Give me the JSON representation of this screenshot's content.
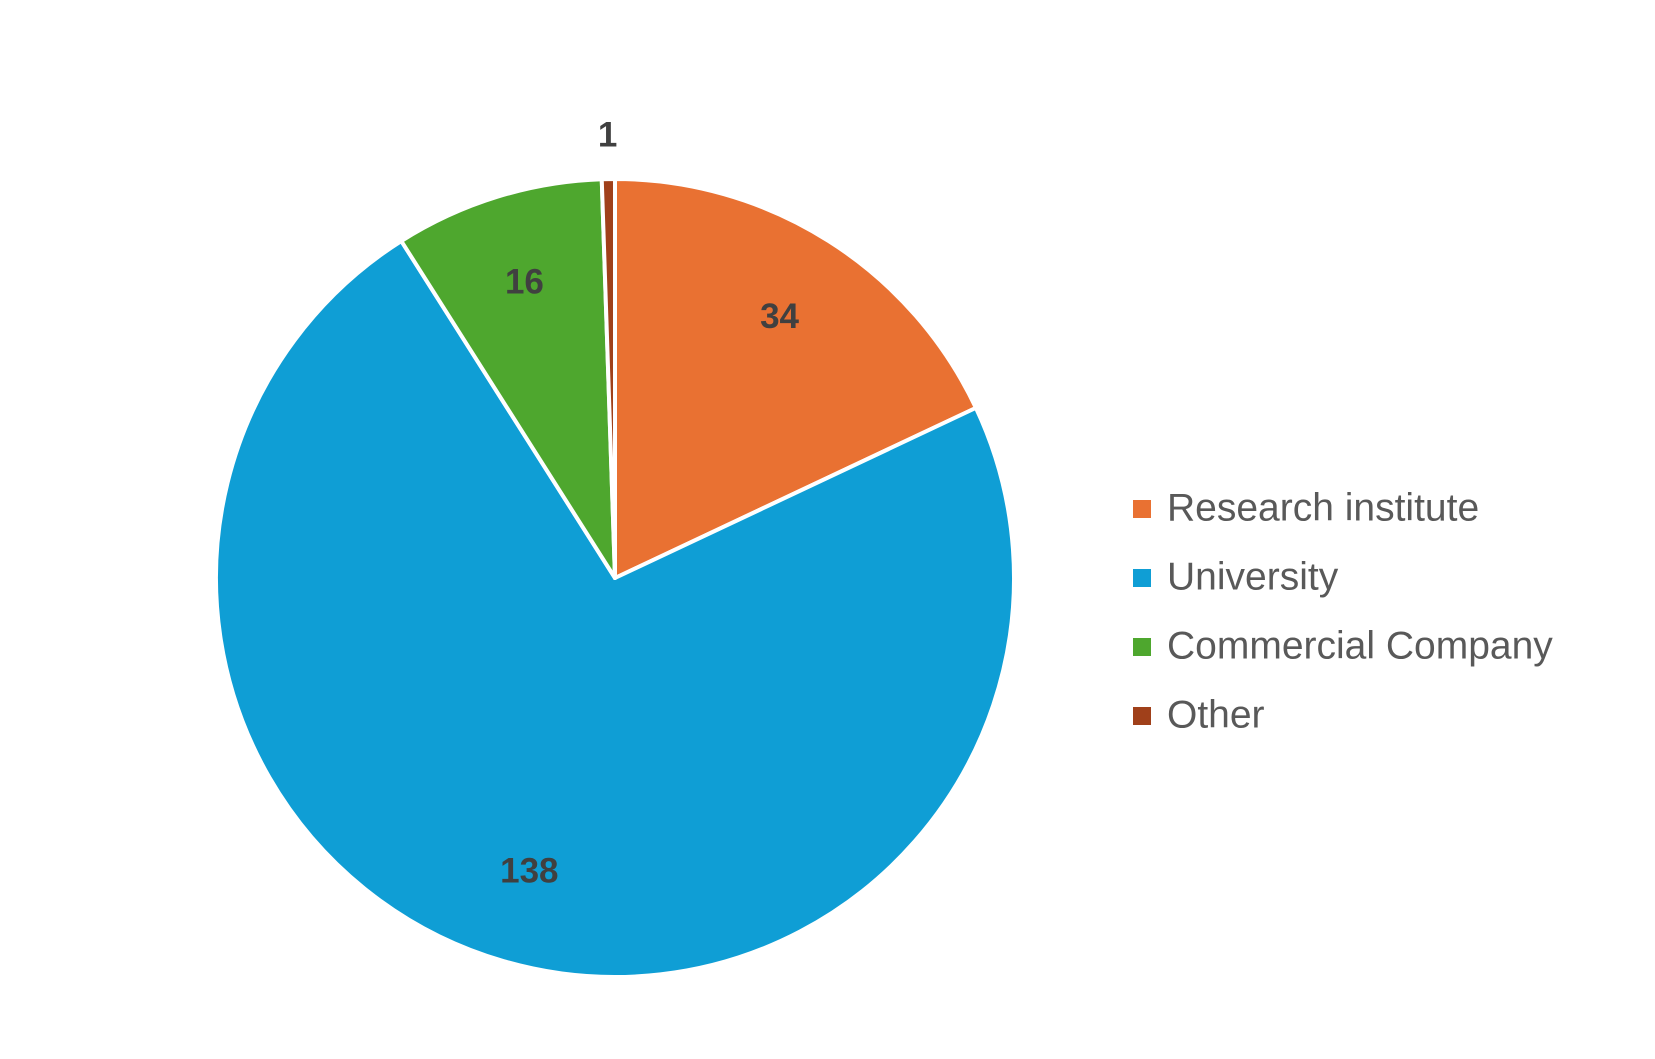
{
  "chart_data": {
    "type": "pie",
    "categories": [
      "Research institute",
      "University",
      "Commercial Company",
      "Other"
    ],
    "values": [
      34,
      138,
      16,
      1
    ],
    "colors": [
      "#e97132",
      "#0f9ed5",
      "#4ea72e",
      "#a0401a"
    ],
    "legend": "right"
  }
}
